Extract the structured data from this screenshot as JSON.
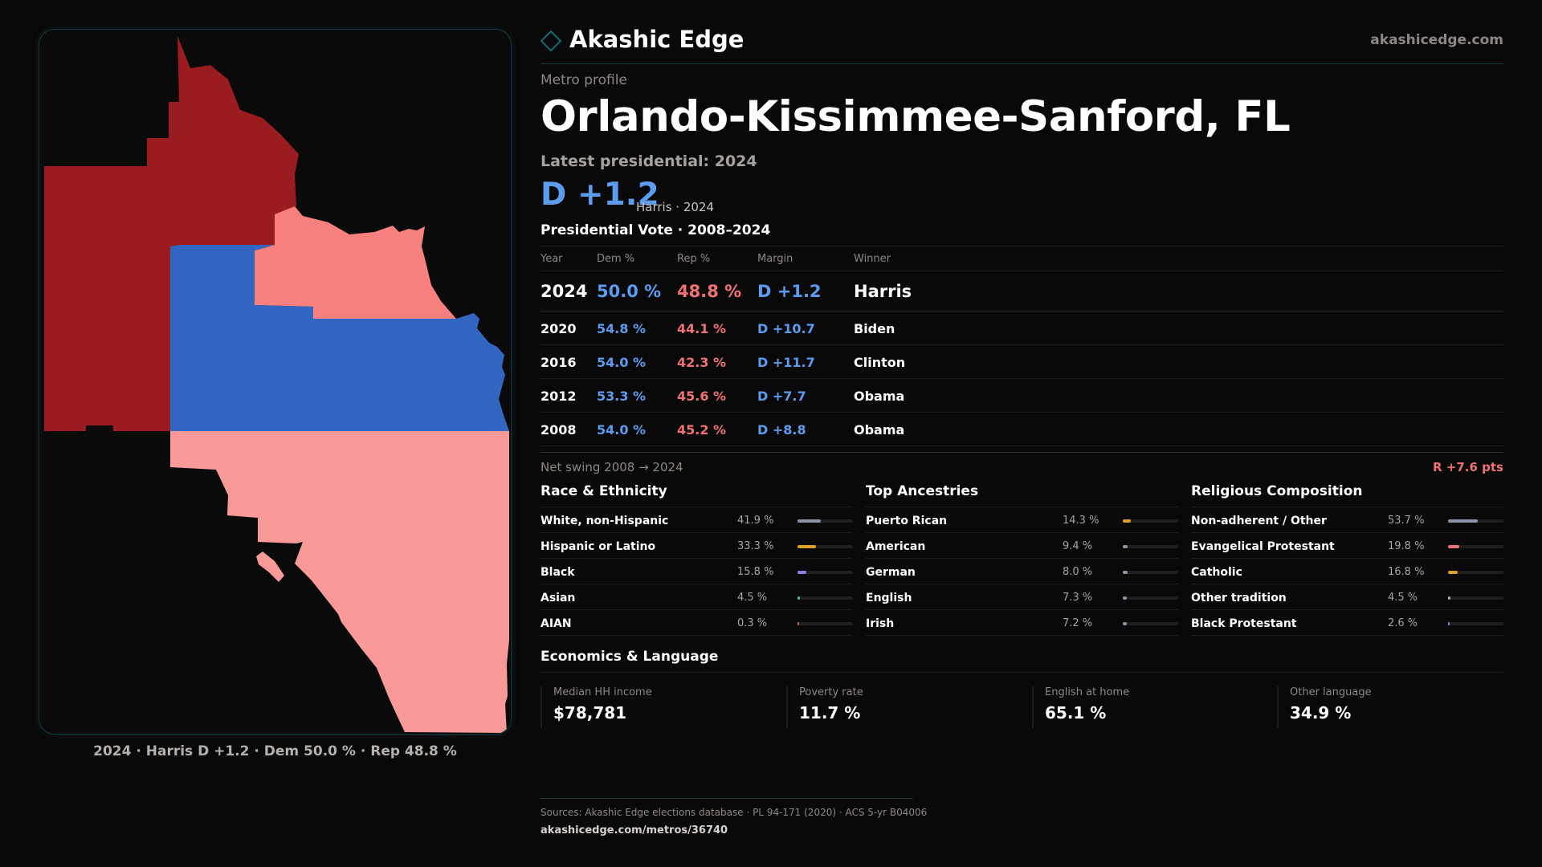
{
  "brand": {
    "name": "Akashic Edge",
    "url": "akashicedge.com",
    "accent": "#0e6c78"
  },
  "profile": {
    "kicker": "Metro profile",
    "title": "Orlando-Kissimmee-Sanford, FL",
    "latest_label": "Latest presidential: 2024",
    "latest_margin": "D +1.2",
    "latest_sub": "Harris · 2024"
  },
  "map": {
    "caption": "2024 · Harris D +1.2 · Dem 50.0 % · Rep 48.8 %",
    "colors": {
      "strong_rep": "#9b1c1f",
      "lean_rep": "#f8807e",
      "light_rep": "#f99a98",
      "dem": "#3366c2"
    }
  },
  "vote_table": {
    "title": "Presidential Vote · 2008–2024",
    "headers": {
      "year": "Year",
      "dem": "Dem %",
      "rep": "Rep %",
      "margin": "Margin",
      "winner": "Winner"
    },
    "rows": [
      {
        "year": "2024",
        "dem": "50.0 %",
        "rep": "48.8 %",
        "margin": "D +1.2",
        "winner": "Harris"
      },
      {
        "year": "2020",
        "dem": "54.8 %",
        "rep": "44.1 %",
        "margin": "D +10.7",
        "winner": "Biden"
      },
      {
        "year": "2016",
        "dem": "54.0 %",
        "rep": "42.3 %",
        "margin": "D +11.7",
        "winner": "Clinton"
      },
      {
        "year": "2012",
        "dem": "53.3 %",
        "rep": "45.6 %",
        "margin": "D +7.7",
        "winner": "Obama"
      },
      {
        "year": "2008",
        "dem": "54.0 %",
        "rep": "45.2 %",
        "margin": "D +8.8",
        "winner": "Obama"
      }
    ]
  },
  "swing": {
    "label": "Net swing 2008 → 2024",
    "value": "R +7.6 pts"
  },
  "race": {
    "title": "Race & Ethnicity",
    "items": [
      {
        "name": "White, non-Hispanic",
        "value": "41.9 %",
        "pct": 41.9,
        "color": "#8a96a6"
      },
      {
        "name": "Hispanic or Latino",
        "value": "33.3 %",
        "pct": 33.3,
        "color": "#e0a020"
      },
      {
        "name": "Black",
        "value": "15.8 %",
        "pct": 15.8,
        "color": "#8f7fe0"
      },
      {
        "name": "Asian",
        "value": "4.5 %",
        "pct": 4.5,
        "color": "#3fbf8f"
      },
      {
        "name": "AIAN",
        "value": "0.3 %",
        "pct": 0.3,
        "color": "#d06040"
      }
    ]
  },
  "ancestries": {
    "title": "Top Ancestries",
    "items": [
      {
        "name": "Puerto Rican",
        "value": "14.3 %",
        "pct": 14.3,
        "color": "#e0a020"
      },
      {
        "name": "American",
        "value": "9.4 %",
        "pct": 9.4,
        "color": "#8a96a6"
      },
      {
        "name": "German",
        "value": "8.0 %",
        "pct": 8.0,
        "color": "#8a96a6"
      },
      {
        "name": "English",
        "value": "7.3 %",
        "pct": 7.3,
        "color": "#8a96a6"
      },
      {
        "name": "Irish",
        "value": "7.2 %",
        "pct": 7.2,
        "color": "#8a96a6"
      }
    ]
  },
  "religion": {
    "title": "Religious Composition",
    "items": [
      {
        "name": "Non-adherent / Other",
        "value": "53.7 %",
        "pct": 53.7,
        "color": "#8a96a6"
      },
      {
        "name": "Evangelical Protestant",
        "value": "19.8 %",
        "pct": 19.8,
        "color": "#f07272"
      },
      {
        "name": "Catholic",
        "value": "16.8 %",
        "pct": 16.8,
        "color": "#e0a020"
      },
      {
        "name": "Other tradition",
        "value": "4.5 %",
        "pct": 4.5,
        "color": "#b0aaa6"
      },
      {
        "name": "Black Protestant",
        "value": "2.6 %",
        "pct": 2.6,
        "color": "#8f7fe0"
      }
    ]
  },
  "economics": {
    "title": "Economics & Language",
    "cards": [
      {
        "label": "Median HH income",
        "value": "$78,781"
      },
      {
        "label": "Poverty rate",
        "value": "11.7 %"
      },
      {
        "label": "English at home",
        "value": "65.1 %"
      },
      {
        "label": "Other language",
        "value": "34.9 %"
      }
    ]
  },
  "sources": {
    "text": "Sources: Akashic Edge elections database · PL 94-171 (2020) · ACS 5-yr B04006",
    "link": "akashicedge.com/metros/36740"
  }
}
